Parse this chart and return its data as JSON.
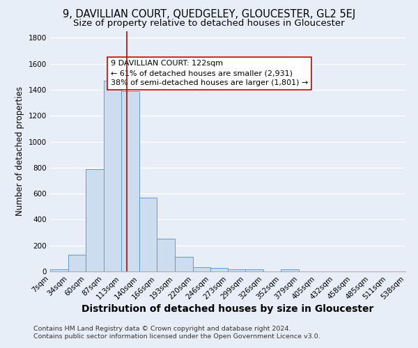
{
  "title": "9, DAVILLIAN COURT, QUEDGELEY, GLOUCESTER, GL2 5EJ",
  "subtitle": "Size of property relative to detached houses in Gloucester",
  "xlabel": "Distribution of detached houses by size in Gloucester",
  "ylabel": "Number of detached properties",
  "bin_edges": [
    7,
    34,
    60,
    87,
    113,
    140,
    166,
    193,
    220,
    246,
    273,
    299,
    326,
    352,
    379,
    405,
    432,
    458,
    485,
    511,
    538
  ],
  "bar_heights": [
    15,
    130,
    790,
    1470,
    1390,
    570,
    250,
    110,
    30,
    25,
    15,
    15,
    0,
    15,
    0,
    0,
    0,
    0,
    0,
    0
  ],
  "bar_color": "#ccddf0",
  "bar_edgecolor": "#6699cc",
  "property_line_x": 122,
  "property_line_color": "#cc0000",
  "ylim": [
    0,
    1850
  ],
  "yticks": [
    0,
    200,
    400,
    600,
    800,
    1000,
    1200,
    1400,
    1600,
    1800
  ],
  "annotation_title": "9 DAVILLIAN COURT: 122sqm",
  "annotation_line1": "← 61% of detached houses are smaller (2,931)",
  "annotation_line2": "38% of semi-detached houses are larger (1,801) →",
  "annotation_box_color": "#ffffff",
  "annotation_box_edgecolor": "#cc0000",
  "footer1": "Contains HM Land Registry data © Crown copyright and database right 2024.",
  "footer2": "Contains public sector information licensed under the Open Government Licence v3.0.",
  "background_color": "#e8eef8",
  "grid_color": "#d0d8e8",
  "title_fontsize": 10.5,
  "subtitle_fontsize": 9.5,
  "xlabel_fontsize": 10,
  "ylabel_fontsize": 8.5,
  "tick_fontsize": 7.5,
  "footer_fontsize": 6.8,
  "annotation_fontsize": 8
}
